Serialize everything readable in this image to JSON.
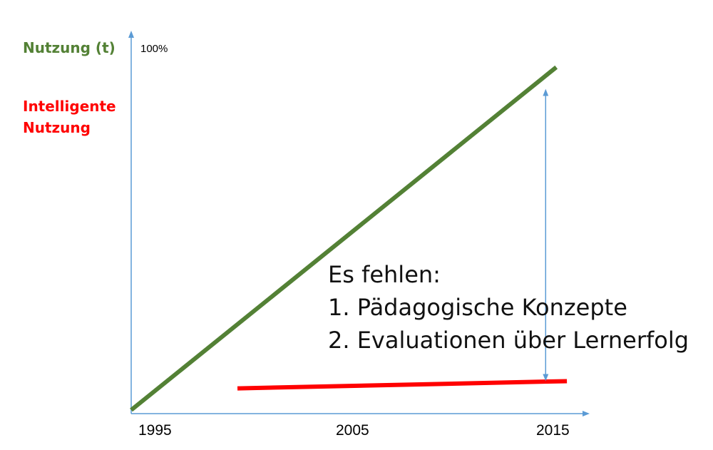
{
  "chart_data": {
    "type": "line",
    "x": [
      1995,
      2005,
      2015
    ],
    "x_tick_labels": [
      "1995",
      "2005",
      "2015"
    ],
    "ylim": [
      0,
      100
    ],
    "y_max_label": "100%",
    "series": [
      {
        "name": "Nutzung (t)",
        "color": "#538135",
        "points": [
          {
            "x": 1995,
            "y": 1
          },
          {
            "x": 2015,
            "y": 96
          }
        ]
      },
      {
        "name": "Intelligente Nutzung",
        "color": "#ff0000",
        "points": [
          {
            "x": 2000,
            "y": 7
          },
          {
            "x": 2015.5,
            "y": 9
          }
        ]
      }
    ],
    "gap_arrow": {
      "x": 2014.5,
      "y_from": 10,
      "y_to": 89
    },
    "annotation": {
      "heading": "Es fehlen:",
      "items": [
        "1. Pädagogische Konzepte",
        "2. Evaluationen über Lernerfolg"
      ]
    },
    "axis_color": "#5b9bd5",
    "grid": false
  }
}
